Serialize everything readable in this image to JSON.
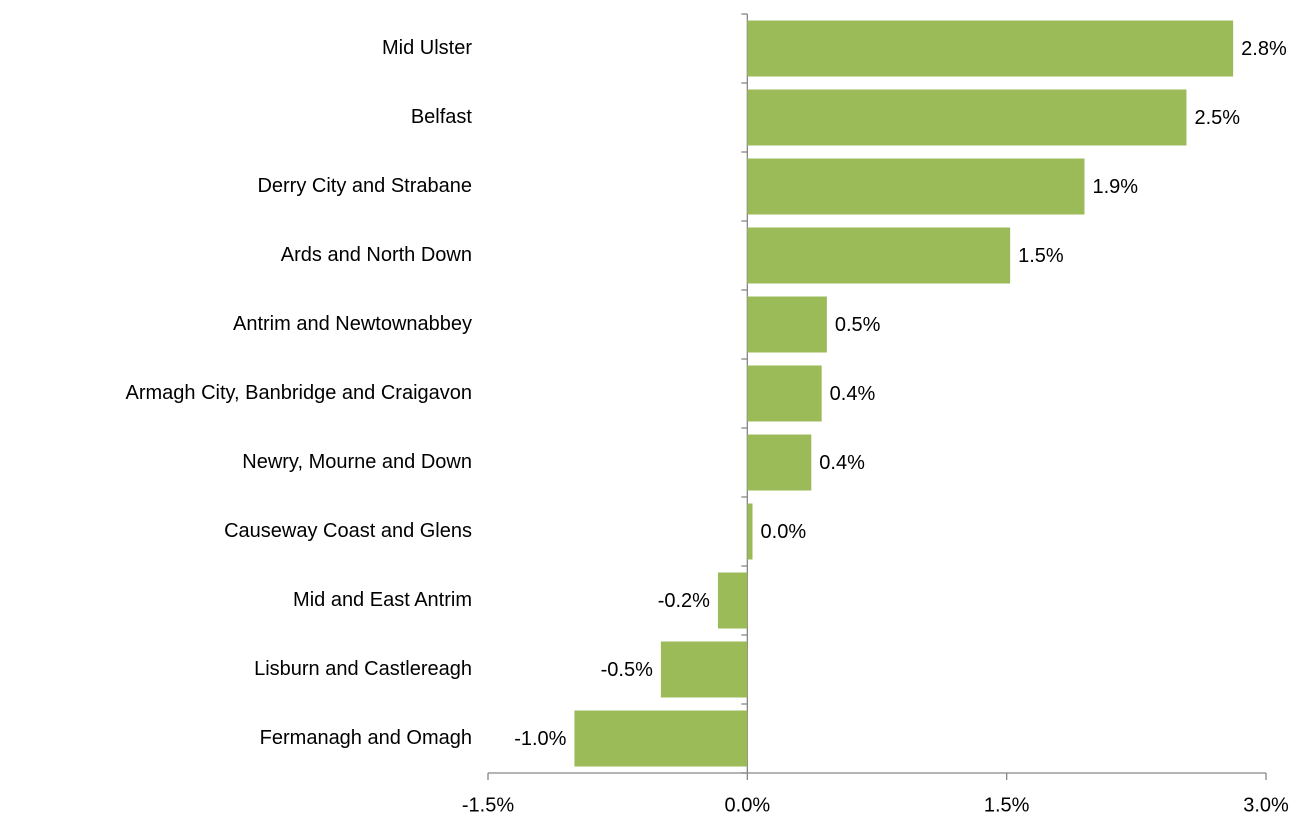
{
  "chart_data": {
    "type": "bar",
    "orientation": "horizontal",
    "categories": [
      "Mid Ulster",
      "Belfast",
      "Derry City and Strabane",
      "Ards and North Down",
      "Antrim and Newtownabbey",
      "Armagh City, Banbridge and Craigavon",
      "Newry, Mourne and Down",
      "Causeway Coast and Glens",
      "Mid and East Antrim",
      "Lisburn and Castlereagh",
      "Fermanagh and Omagh"
    ],
    "values": [
      2.81,
      2.54,
      1.95,
      1.52,
      0.46,
      0.43,
      0.37,
      0.03,
      -0.17,
      -0.5,
      -1.0
    ],
    "value_labels": [
      "2.8%",
      "2.5%",
      "1.9%",
      "1.5%",
      "0.5%",
      "0.4%",
      "0.4%",
      "0.0%",
      "-0.2%",
      "-0.5%",
      "-1.0%"
    ],
    "color": "#9bbb59",
    "xlim": [
      -1.5,
      3.0
    ],
    "xticks": [
      {
        "value": -1.5,
        "label": "-1.5%"
      },
      {
        "value": 0,
        "label": "0.0%"
      },
      {
        "value": 1.5,
        "label": "1.5%"
      },
      {
        "value": 3.0,
        "label": "3.0%"
      }
    ],
    "grid": false
  }
}
